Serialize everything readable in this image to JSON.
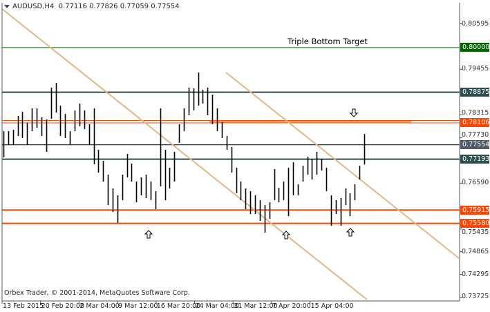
{
  "header": {
    "symbol": "AUDUSD,H4",
    "ohlc": "0.77116 0.77826 0.77059 0.77554"
  },
  "copyright": "Orbex Trader, © 2001-2014, MetaQuotes Software Corp.",
  "annotation": "Triple Bottom Target",
  "colors": {
    "background": "#ffffff",
    "bars": "#000000",
    "axis": "#4a5860",
    "trendline": "#deb887",
    "support": "#ff4500",
    "resistance": "#2f4f4f",
    "target": "#006400",
    "zone": "#f4a460",
    "bid_label": "#4f5b66"
  },
  "chart_data": {
    "type": "ohlc-bar",
    "symbol": "AUDUSD",
    "timeframe": "H4",
    "y_tick_labels": [
      "0.80595",
      "0.79455",
      "0.78315",
      "0.77730",
      "0.76590",
      "0.75435",
      "0.74865",
      "0.74295",
      "0.73725"
    ],
    "y_tick_values": [
      0.80595,
      0.79455,
      0.78315,
      0.7773,
      0.7659,
      0.75435,
      0.74865,
      0.74295,
      0.73725
    ],
    "ylim": [
      0.73725,
      0.80595
    ],
    "x_tick_labels": [
      "13 Feb 2015",
      "20 Feb 20:00",
      "2 Mar 04:00",
      "9 Mar 12:00",
      "16 Mar 20:00",
      "24 Mar 04:00",
      "31 Mar 12:00",
      "7 Apr 20:00",
      "15 Apr 04:00"
    ],
    "bars_high_low": [
      [
        0.77897,
        0.77238
      ],
      [
        0.77897,
        0.7755
      ],
      [
        0.77932,
        0.7755
      ],
      [
        0.78279,
        0.77776
      ],
      [
        0.78383,
        0.77724
      ],
      [
        0.78106,
        0.7755
      ],
      [
        0.7847,
        0.77897
      ],
      [
        0.7847,
        0.77984
      ],
      [
        0.78244,
        0.77776
      ],
      [
        0.78192,
        0.77377
      ],
      [
        0.78991,
        0.7821
      ],
      [
        0.79112,
        0.78366
      ],
      [
        0.78539,
        0.77776
      ],
      [
        0.78331,
        0.77724
      ],
      [
        0.77897,
        0.7755
      ],
      [
        0.78418,
        0.77897
      ],
      [
        0.78591,
        0.78019
      ],
      [
        0.78418,
        0.7795
      ],
      [
        0.78071,
        0.7755
      ],
      [
        0.7847,
        0.77065
      ],
      [
        0.77429,
        0.76856
      ],
      [
        0.77151,
        0.76631
      ],
      [
        0.76804,
        0.76041
      ],
      [
        0.76457,
        0.75868
      ],
      [
        0.76284,
        0.7559
      ],
      [
        0.76804,
        0.76162
      ],
      [
        0.77325,
        0.76735
      ],
      [
        0.77082,
        0.76631
      ],
      [
        0.76631,
        0.7611
      ],
      [
        0.76735,
        0.76284
      ],
      [
        0.76804,
        0.76215
      ],
      [
        0.76631,
        0.76162
      ],
      [
        0.76388,
        0.75937
      ],
      [
        0.7847,
        0.76509
      ],
      [
        0.77429,
        0.76162
      ],
      [
        0.76978,
        0.76457
      ],
      [
        0.77377,
        0.76631
      ],
      [
        0.78071,
        0.77603
      ],
      [
        0.7847,
        0.77897
      ],
      [
        0.78991,
        0.78297
      ],
      [
        0.78973,
        0.78418
      ],
      [
        0.79372,
        0.78539
      ],
      [
        0.78938,
        0.78591
      ],
      [
        0.78991,
        0.78297
      ],
      [
        0.78817,
        0.78071
      ],
      [
        0.7847,
        0.77897
      ],
      [
        0.78123,
        0.77724
      ],
      [
        0.77776,
        0.77429
      ],
      [
        0.77498,
        0.76856
      ],
      [
        0.76978,
        0.76336
      ],
      [
        0.76631,
        0.76162
      ],
      [
        0.76457,
        0.75937
      ],
      [
        0.76388,
        0.75815
      ],
      [
        0.76284,
        0.75815
      ],
      [
        0.76162,
        0.75642
      ],
      [
        0.76041,
        0.75347
      ],
      [
        0.7611,
        0.75694
      ],
      [
        0.76943,
        0.76162
      ],
      [
        0.76475,
        0.7611
      ],
      [
        0.76631,
        0.76162
      ],
      [
        0.76978,
        0.75763
      ],
      [
        0.77117,
        0.76284
      ],
      [
        0.76562,
        0.76284
      ],
      [
        0.7703,
        0.76631
      ],
      [
        0.77256,
        0.76804
      ],
      [
        0.77203,
        0.76683
      ],
      [
        0.77377,
        0.76804
      ],
      [
        0.77203,
        0.76909
      ],
      [
        0.76978,
        0.76388
      ],
      [
        0.76284,
        0.75521
      ],
      [
        0.76162,
        0.75815
      ],
      [
        0.76215,
        0.75521
      ],
      [
        0.76457,
        0.76041
      ],
      [
        0.76336,
        0.75763
      ],
      [
        0.76562,
        0.76162
      ],
      [
        0.7703,
        0.76683
      ],
      [
        0.77826,
        0.77059
      ]
    ],
    "last_bar": {
      "open": 0.77116,
      "high": 0.77826,
      "low": 0.77059,
      "close": 0.77554
    },
    "levels": [
      {
        "price": 0.8,
        "label": "0.80000",
        "color": "#006400",
        "width": 1
      },
      {
        "price": 0.78875,
        "label": "0.78875",
        "color": "#2f4f4f",
        "width": 2
      },
      {
        "price": 0.78167,
        "label": "",
        "color": "#ff4500",
        "width": 1
      },
      {
        "price": 0.78106,
        "label": "0.78106",
        "color": "#ff4500",
        "width": 1
      },
      {
        "price": 0.77554,
        "label": "0.77554",
        "color": "#000000",
        "width": 1,
        "label_bg": "#4f5b66"
      },
      {
        "price": 0.77193,
        "label": "0.77193",
        "color": "#2f4f4f",
        "width": 2
      },
      {
        "price": 0.75915,
        "label": "0.75915",
        "color": "#ff4500",
        "width": 2
      },
      {
        "price": 0.7558,
        "label": "0.75580",
        "color": "#ff4500",
        "width": 2
      }
    ],
    "zone": {
      "price_top": 0.78167,
      "price_bottom": 0.78106,
      "color": "#f4a460"
    },
    "trendlines": [
      {
        "name": "channel-upper",
        "color": "#deb887"
      },
      {
        "name": "channel-lower",
        "color": "#deb887"
      }
    ],
    "arrows": [
      {
        "direction": "up"
      },
      {
        "direction": "up"
      },
      {
        "direction": "up"
      },
      {
        "direction": "down"
      }
    ],
    "grid": false
  }
}
